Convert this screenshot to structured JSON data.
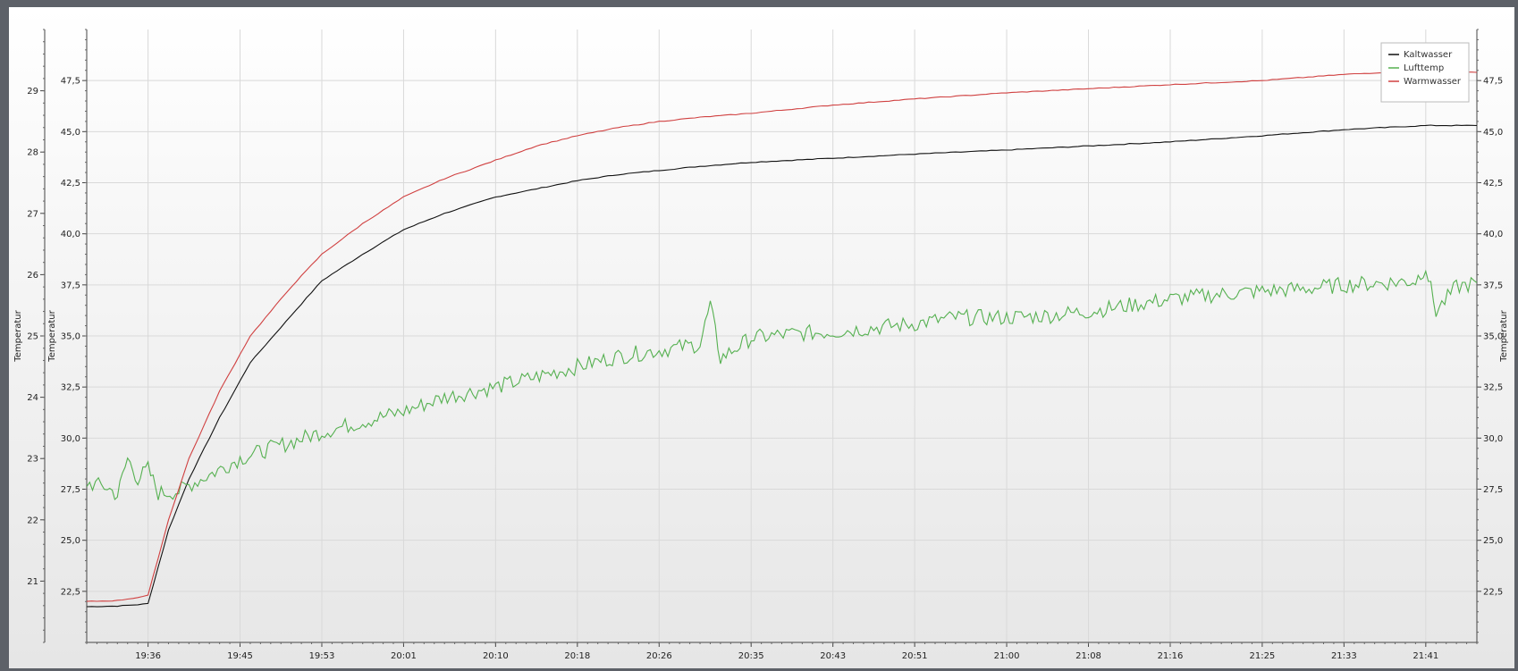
{
  "chart_data": {
    "type": "line",
    "xlabel": "",
    "x_tick_labels": [
      "19:36",
      "19:45",
      "19:53",
      "20:01",
      "20:10",
      "20:18",
      "20:26",
      "20:35",
      "20:43",
      "20:51",
      "21:00",
      "21:08",
      "21:16",
      "21:25",
      "21:33",
      "21:41"
    ],
    "x_range": [
      "19:30",
      "21:46"
    ],
    "y_axes": [
      {
        "id": "outer-left",
        "side": "left",
        "label": "Temperatur",
        "range": [
          20,
          30
        ],
        "tick_labels": [
          "21",
          "22",
          "23",
          "24",
          "25",
          "26",
          "27",
          "28",
          "29"
        ]
      },
      {
        "id": "inner-left",
        "side": "left",
        "label": "Temperatur",
        "range": [
          20,
          50
        ],
        "tick_labels": [
          "22,5",
          "25,0",
          "27,5",
          "30,0",
          "32,5",
          "35,0",
          "37,5",
          "40,0",
          "42,5",
          "45,0",
          "47,5"
        ]
      },
      {
        "id": "right",
        "side": "right",
        "label": "Temperatur",
        "range": [
          20,
          50
        ],
        "tick_labels": [
          "22,5",
          "25,0",
          "27,5",
          "30,0",
          "32,5",
          "35,0",
          "37,5",
          "40,0",
          "42,5",
          "45,0",
          "47,5"
        ]
      }
    ],
    "grid": true,
    "legend_position": "top-right",
    "series": [
      {
        "name": "Kaltwasser",
        "color": "#111111",
        "axis": "right",
        "points": [
          [
            "19:30",
            21.75
          ],
          [
            "19:33",
            21.78
          ],
          [
            "19:35",
            21.85
          ],
          [
            "19:36",
            21.9
          ],
          [
            "19:38",
            25.5
          ],
          [
            "19:40",
            28.0
          ],
          [
            "19:43",
            31.0
          ],
          [
            "19:46",
            33.7
          ],
          [
            "19:50",
            36.0
          ],
          [
            "19:53",
            37.7
          ],
          [
            "19:57",
            39.0
          ],
          [
            "20:01",
            40.2
          ],
          [
            "20:05",
            41.0
          ],
          [
            "20:10",
            41.8
          ],
          [
            "20:14",
            42.2
          ],
          [
            "20:18",
            42.6
          ],
          [
            "20:22",
            42.9
          ],
          [
            "20:26",
            43.1
          ],
          [
            "20:30",
            43.3
          ],
          [
            "20:35",
            43.5
          ],
          [
            "20:43",
            43.7
          ],
          [
            "20:51",
            43.9
          ],
          [
            "21:00",
            44.1
          ],
          [
            "21:08",
            44.3
          ],
          [
            "21:16",
            44.5
          ],
          [
            "21:25",
            44.8
          ],
          [
            "21:33",
            45.1
          ],
          [
            "21:41",
            45.3
          ],
          [
            "21:46",
            45.3
          ]
        ]
      },
      {
        "name": "Lufttemp",
        "color": "#55b050",
        "axis": "right",
        "points": [
          [
            "19:30",
            27.8
          ],
          [
            "19:32",
            27.6
          ],
          [
            "19:33",
            27.2
          ],
          [
            "19:34",
            29.0
          ],
          [
            "19:35",
            28.0
          ],
          [
            "19:36",
            28.5
          ],
          [
            "19:37",
            27.3
          ],
          [
            "19:39",
            27.4
          ],
          [
            "19:40",
            27.7
          ],
          [
            "19:42",
            28.2
          ],
          [
            "19:45",
            29.0
          ],
          [
            "19:48",
            29.5
          ],
          [
            "19:50",
            29.8
          ],
          [
            "19:53",
            30.3
          ],
          [
            "19:57",
            30.8
          ],
          [
            "20:01",
            31.3
          ],
          [
            "20:05",
            32.0
          ],
          [
            "20:10",
            32.5
          ],
          [
            "20:14",
            33.0
          ],
          [
            "20:18",
            33.5
          ],
          [
            "20:22",
            34.0
          ],
          [
            "20:26",
            34.3
          ],
          [
            "20:30",
            34.6
          ],
          [
            "20:31",
            36.5
          ],
          [
            "20:32",
            33.9
          ],
          [
            "20:35",
            34.9
          ],
          [
            "20:39",
            35.1
          ],
          [
            "20:43",
            35.2
          ],
          [
            "20:47",
            35.4
          ],
          [
            "20:51",
            35.6
          ],
          [
            "20:55",
            35.9
          ],
          [
            "21:00",
            35.9
          ],
          [
            "21:04",
            36.0
          ],
          [
            "21:08",
            36.2
          ],
          [
            "21:12",
            36.5
          ],
          [
            "21:16",
            36.8
          ],
          [
            "21:20",
            37.0
          ],
          [
            "21:25",
            37.2
          ],
          [
            "21:29",
            37.3
          ],
          [
            "21:33",
            37.5
          ],
          [
            "21:37",
            37.6
          ],
          [
            "21:40",
            37.7
          ],
          [
            "21:41",
            38.4
          ],
          [
            "21:42",
            36.2
          ],
          [
            "21:44",
            37.4
          ],
          [
            "21:46",
            37.6
          ]
        ]
      },
      {
        "name": "Warmwasser",
        "color": "#d04040",
        "axis": "right",
        "points": [
          [
            "19:30",
            22.0
          ],
          [
            "19:33",
            22.05
          ],
          [
            "19:35",
            22.2
          ],
          [
            "19:36",
            22.3
          ],
          [
            "19:38",
            26.0
          ],
          [
            "19:40",
            29.0
          ],
          [
            "19:43",
            32.3
          ],
          [
            "19:46",
            35.0
          ],
          [
            "19:50",
            37.4
          ],
          [
            "19:53",
            39.0
          ],
          [
            "19:57",
            40.5
          ],
          [
            "20:01",
            41.8
          ],
          [
            "20:05",
            42.7
          ],
          [
            "20:10",
            43.6
          ],
          [
            "20:14",
            44.3
          ],
          [
            "20:18",
            44.8
          ],
          [
            "20:22",
            45.2
          ],
          [
            "20:26",
            45.5
          ],
          [
            "20:30",
            45.7
          ],
          [
            "20:35",
            45.9
          ],
          [
            "20:43",
            46.3
          ],
          [
            "20:51",
            46.6
          ],
          [
            "21:00",
            46.9
          ],
          [
            "21:08",
            47.1
          ],
          [
            "21:16",
            47.3
          ],
          [
            "21:25",
            47.5
          ],
          [
            "21:33",
            47.8
          ],
          [
            "21:41",
            48.0
          ],
          [
            "21:46",
            47.9
          ]
        ]
      }
    ]
  }
}
